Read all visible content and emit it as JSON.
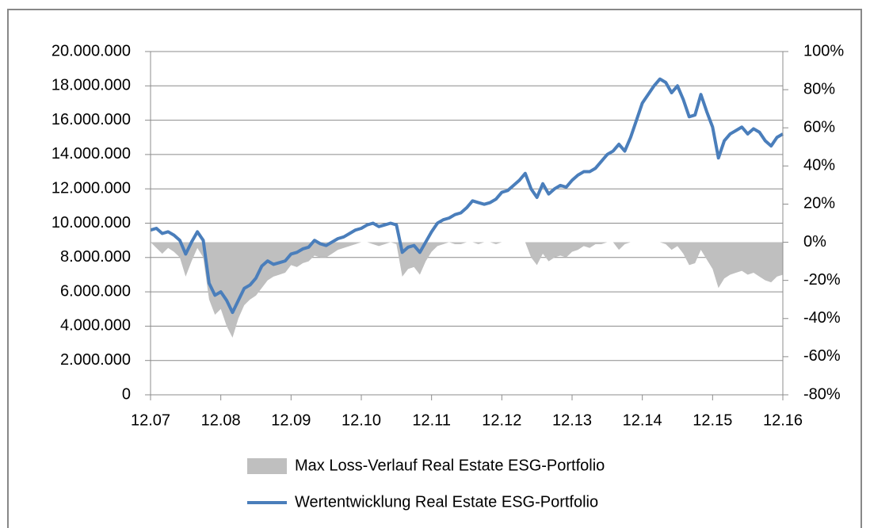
{
  "chart_data": {
    "type": "line",
    "categories": [
      "12.07",
      null,
      null,
      null,
      null,
      null,
      null,
      null,
      null,
      null,
      null,
      null,
      "12.08",
      null,
      null,
      null,
      null,
      null,
      null,
      null,
      null,
      null,
      null,
      null,
      "12.09",
      null,
      null,
      null,
      null,
      null,
      null,
      null,
      null,
      null,
      null,
      null,
      "12.10",
      null,
      null,
      null,
      null,
      null,
      null,
      null,
      null,
      null,
      null,
      null,
      "12.11",
      null,
      null,
      null,
      null,
      null,
      null,
      null,
      null,
      null,
      null,
      null,
      "12.12",
      null,
      null,
      null,
      null,
      null,
      null,
      null,
      null,
      null,
      null,
      null,
      "12.13",
      null,
      null,
      null,
      null,
      null,
      null,
      null,
      null,
      null,
      null,
      null,
      "12.14",
      null,
      null,
      null,
      null,
      null,
      null,
      null,
      null,
      null,
      null,
      null,
      "12.15",
      null,
      null,
      null,
      null,
      null,
      null,
      null,
      null,
      null,
      null,
      null,
      "12.16"
    ],
    "series": [
      {
        "name": "Max Loss-Verlauf Real Estate ESG-Portfolio",
        "type": "area",
        "axis": "y2",
        "color": "#bfbfbf",
        "values": [
          0,
          -3,
          -6,
          -3,
          -5,
          -8,
          -18,
          -10,
          -3,
          -8,
          -30,
          -38,
          -35,
          -44,
          -50,
          -40,
          -33,
          -30,
          -28,
          -24,
          -20,
          -18,
          -17,
          -16,
          -12,
          -13,
          -11,
          -10,
          -7,
          -8,
          -8,
          -6,
          -4,
          -3,
          -2,
          -1,
          0,
          0,
          -1,
          -2,
          -1,
          0,
          -1,
          -18,
          -14,
          -13,
          -17,
          -10,
          -5,
          -2,
          -1,
          0,
          -1,
          -1,
          0,
          0,
          -1,
          0,
          0,
          -1,
          0,
          0,
          0,
          0,
          0,
          -8,
          -12,
          -6,
          -10,
          -8,
          -7,
          -8,
          -5,
          -4,
          -2,
          -3,
          -1,
          -1,
          0,
          0,
          -4,
          -1,
          0,
          0,
          0,
          0,
          0,
          0,
          -1,
          -4,
          -2,
          -6,
          -12,
          -11,
          -4,
          -9,
          -14,
          -24,
          -19,
          -17,
          -16,
          -15,
          -17,
          -16,
          -18,
          -20,
          -21,
          -18,
          -17
        ]
      },
      {
        "name": "Wertentwicklung Real Estate ESG-Portfolio",
        "type": "line",
        "color": "#4a7ebb",
        "values": [
          9600000,
          9700000,
          9400000,
          9500000,
          9300000,
          9000000,
          8200000,
          8900000,
          9500000,
          9000000,
          6500000,
          5800000,
          6000000,
          5500000,
          4800000,
          5500000,
          6200000,
          6400000,
          6800000,
          7500000,
          7800000,
          7600000,
          7700000,
          7800000,
          8200000,
          8300000,
          8500000,
          8600000,
          9000000,
          8800000,
          8700000,
          8900000,
          9100000,
          9200000,
          9400000,
          9600000,
          9700000,
          9900000,
          10000000,
          9800000,
          9900000,
          10000000,
          9900000,
          8300000,
          8600000,
          8700000,
          8300000,
          8900000,
          9500000,
          10000000,
          10200000,
          10300000,
          10500000,
          10600000,
          10900000,
          11300000,
          11200000,
          11100000,
          11200000,
          11400000,
          11800000,
          11900000,
          12200000,
          12500000,
          12900000,
          12000000,
          11500000,
          12300000,
          11700000,
          12000000,
          12200000,
          12100000,
          12500000,
          12800000,
          13000000,
          13000000,
          13200000,
          13600000,
          14000000,
          14200000,
          14600000,
          14200000,
          15000000,
          16000000,
          17000000,
          17500000,
          18000000,
          18400000,
          18200000,
          17600000,
          18000000,
          17200000,
          16200000,
          16300000,
          17500000,
          16500000,
          15600000,
          13800000,
          14800000,
          15200000,
          15400000,
          15600000,
          15200000,
          15500000,
          15300000,
          14800000,
          14500000,
          15000000,
          15200000
        ]
      }
    ],
    "ylim": [
      0,
      20000000
    ],
    "yticks": [
      0,
      {
        "value": 2000000,
        "label": "2.000.000"
      },
      {
        "value": 4000000,
        "label": "4.000.000"
      },
      {
        "value": 6000000,
        "label": "6.000.000"
      },
      {
        "value": 8000000,
        "label": "8.000.000"
      },
      {
        "value": 10000000,
        "label": "10.000.000"
      },
      {
        "value": 12000000,
        "label": "12.000.000"
      },
      {
        "value": 14000000,
        "label": "14.000.000"
      },
      {
        "value": 16000000,
        "label": "16.000.000"
      },
      {
        "value": 18000000,
        "label": "18.000.000"
      },
      {
        "value": 20000000,
        "label": "20.000.000"
      }
    ],
    "y2lim": [
      -80,
      100
    ],
    "y2ticks": [
      {
        "value": -80,
        "label": "-80%"
      },
      {
        "value": -60,
        "label": "-60%"
      },
      {
        "value": -40,
        "label": "-40%"
      },
      {
        "value": -20,
        "label": "-20%"
      },
      {
        "value": 0,
        "label": "0%"
      },
      {
        "value": 20,
        "label": "20%"
      },
      {
        "value": 40,
        "label": "40%"
      },
      {
        "value": 60,
        "label": "60%"
      },
      {
        "value": 80,
        "label": "80%"
      },
      {
        "value": 100,
        "label": "100%"
      }
    ],
    "grid": true,
    "legend": "bottom"
  }
}
